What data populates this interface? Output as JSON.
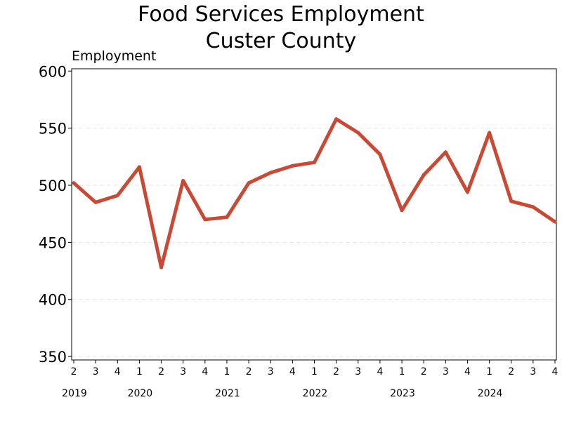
{
  "chart_data": {
    "type": "line",
    "title": [
      "Food Services Employment",
      "Custer County"
    ],
    "ylabel": "Employment",
    "xlabel": "",
    "ylim": [
      347,
      602
    ],
    "yticks": [
      350,
      400,
      450,
      500,
      550,
      600
    ],
    "grid": true,
    "color": "#c84a35",
    "quarters": [
      "2",
      "3",
      "4",
      "1",
      "2",
      "3",
      "4",
      "1",
      "2",
      "3",
      "4",
      "1",
      "2",
      "3",
      "4",
      "1",
      "2",
      "3",
      "4",
      "1",
      "2",
      "3",
      "4"
    ],
    "years": [
      {
        "label": "2019",
        "index": 0
      },
      {
        "label": "2020",
        "index": 3
      },
      {
        "label": "2021",
        "index": 7
      },
      {
        "label": "2022",
        "index": 11
      },
      {
        "label": "2023",
        "index": 15
      },
      {
        "label": "2024",
        "index": 19
      }
    ],
    "series": [
      {
        "name": "Employment",
        "values": [
          502,
          485,
          491,
          516,
          428,
          504,
          470,
          472,
          502,
          511,
          517,
          520,
          558,
          546,
          527,
          478,
          509,
          529,
          494,
          546,
          486,
          481,
          468
        ]
      }
    ]
  }
}
